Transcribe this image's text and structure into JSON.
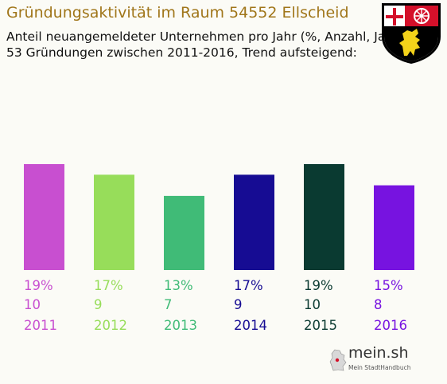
{
  "header": {
    "title": "Gründungsaktivität im Raum 54552 Ellscheid",
    "subtitle_line1": "Anteil neuangemeldeter Unternehmen pro Jahr (%, Anzahl, Jahr)",
    "subtitle_line2": "53 Gründungen zwischen 2011-2016, Trend aufsteigend:"
  },
  "crest": {
    "icon": "rhineland-palatinate-coat-of-arms-icon"
  },
  "branding": {
    "logo_text": "mein.sh",
    "logo_sub": "Mein StadtHandbuch",
    "icon": "germany-map-icon"
  },
  "chart_data": {
    "type": "bar",
    "categories": [
      "2011",
      "2012",
      "2013",
      "2014",
      "2015",
      "2016"
    ],
    "percent_labels": [
      "19%",
      "17%",
      "13%",
      "17%",
      "19%",
      "15%"
    ],
    "values": [
      10,
      9,
      7,
      9,
      10,
      8
    ],
    "colors": [
      "#c84fd0",
      "#97dd5a",
      "#40bb77",
      "#160c93",
      "#0a3a31",
      "#7713e0"
    ],
    "ylim": [
      0,
      10
    ],
    "grid": false,
    "legend": "none"
  }
}
